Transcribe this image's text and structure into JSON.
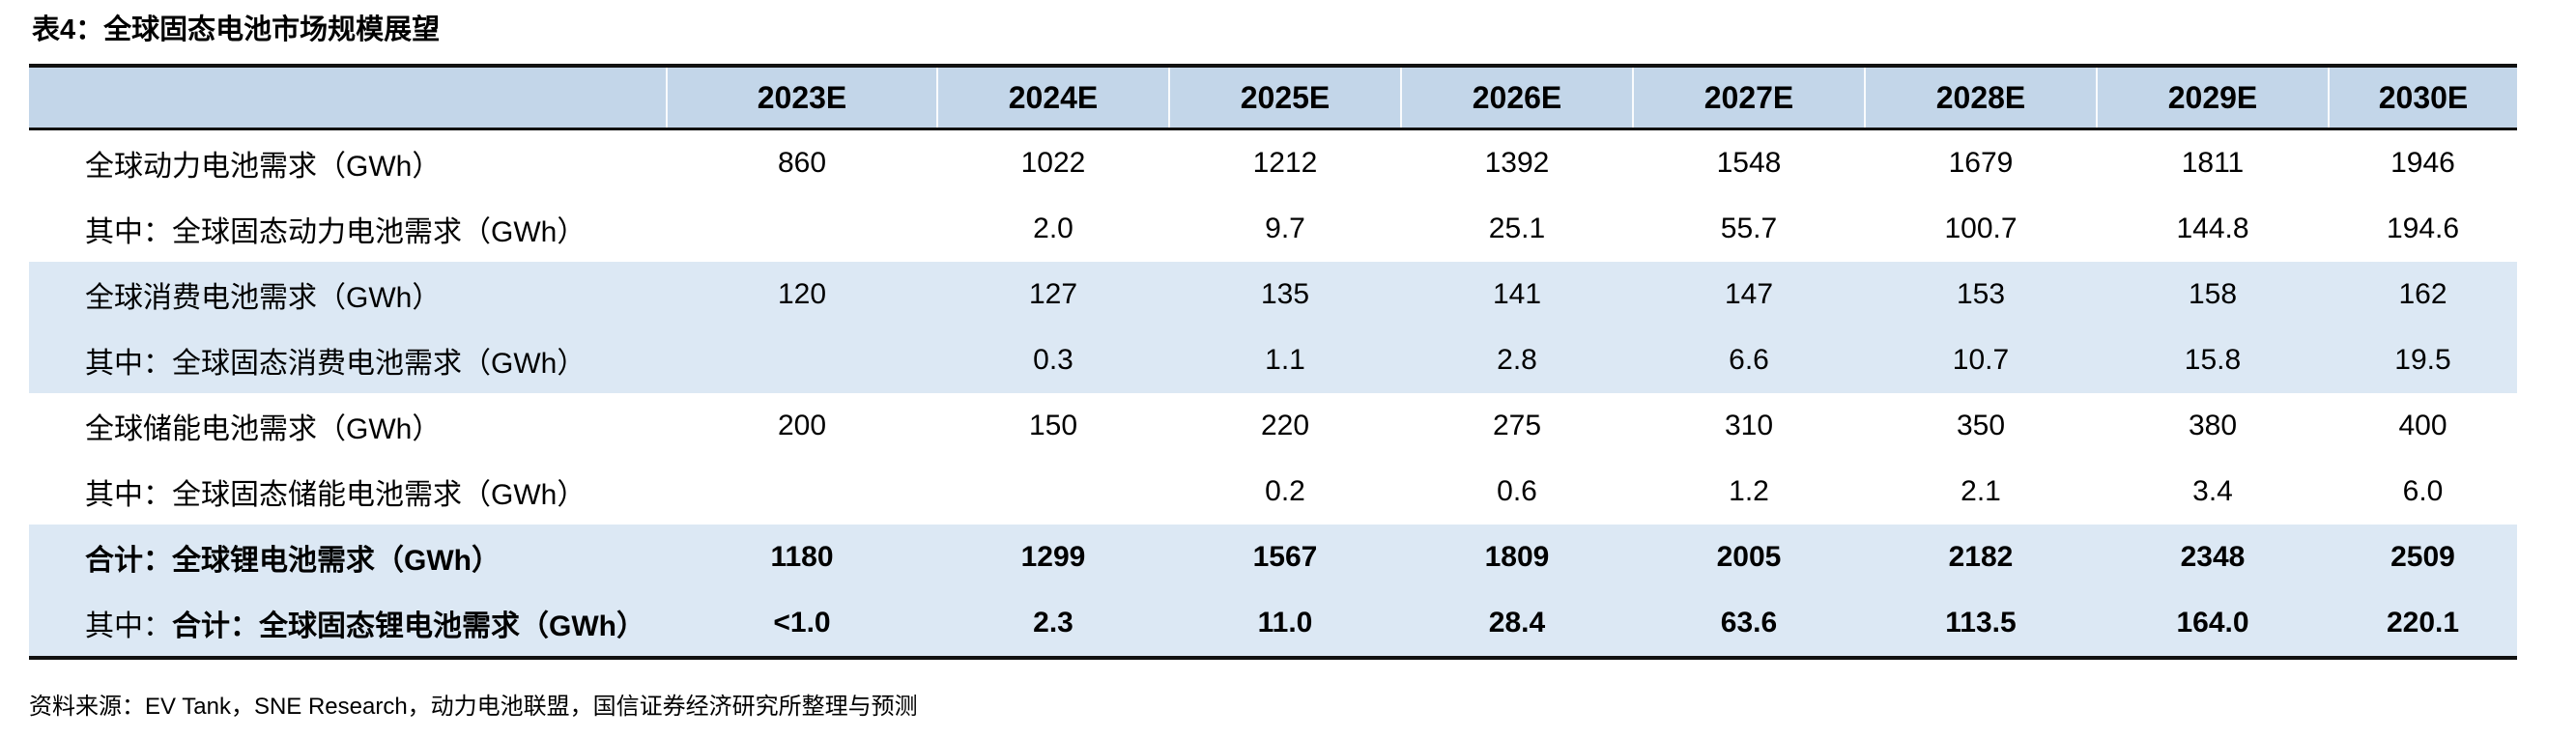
{
  "title": "表4：全球固态电池市场规模展望",
  "source": "资料来源：EV Tank，SNE Research，动力电池联盟，国信证券经济研究所整理与预测",
  "colors": {
    "header_bg": "#c3d6e9",
    "band_bg": "#dce8f4",
    "border_color": "#111111"
  },
  "chart_data": {
    "type": "table",
    "columns": [
      "",
      "2023E",
      "2024E",
      "2025E",
      "2026E",
      "2027E",
      "2028E",
      "2029E",
      "2030E"
    ],
    "rows": [
      {
        "label_prefix": "",
        "label_main": "全球动力电池需求（GWh）",
        "values": [
          "860",
          "1022",
          "1212",
          "1392",
          "1548",
          "1679",
          "1811",
          "1946"
        ]
      },
      {
        "label_prefix": "",
        "label_main": "其中：全球固态动力电池需求（GWh）",
        "values": [
          "",
          "2.0",
          "9.7",
          "25.1",
          "55.7",
          "100.7",
          "144.8",
          "194.6"
        ]
      },
      {
        "label_prefix": "",
        "label_main": "全球消费电池需求（GWh）",
        "values": [
          "120",
          "127",
          "135",
          "141",
          "147",
          "153",
          "158",
          "162"
        ]
      },
      {
        "label_prefix": "",
        "label_main": "其中：全球固态消费电池需求（GWh）",
        "values": [
          "",
          "0.3",
          "1.1",
          "2.8",
          "6.6",
          "10.7",
          "15.8",
          "19.5"
        ]
      },
      {
        "label_prefix": "",
        "label_main": "全球储能电池需求（GWh）",
        "values": [
          "200",
          "150",
          "220",
          "275",
          "310",
          "350",
          "380",
          "400"
        ]
      },
      {
        "label_prefix": "",
        "label_main": "其中：全球固态储能电池需求（GWh）",
        "values": [
          "",
          "",
          "0.2",
          "0.6",
          "1.2",
          "2.1",
          "3.4",
          "6.0"
        ]
      },
      {
        "label_prefix": "",
        "label_main": "合计：全球锂电池需求（GWh）",
        "values": [
          "1180",
          "1299",
          "1567",
          "1809",
          "2005",
          "2182",
          "2348",
          "2509"
        ]
      },
      {
        "label_prefix": "其中：",
        "label_main": "合计：全球固态锂电池需求（GWh）",
        "values": [
          "<1.0",
          "2.3",
          "11.0",
          "28.4",
          "63.6",
          "113.5",
          "164.0",
          "220.1"
        ]
      }
    ]
  }
}
